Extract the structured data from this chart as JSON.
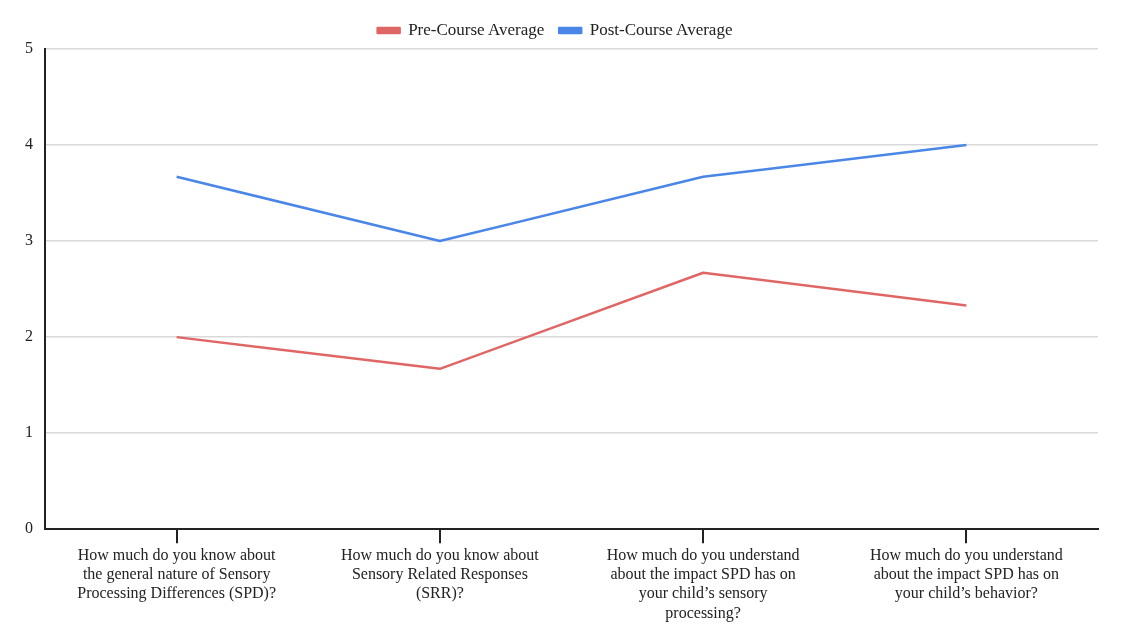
{
  "chart_data": {
    "type": "line",
    "categories": [
      "How much do you know about the general nature of Sensory Processing Differences (SPD)?",
      "How much do you know about Sensory Related Responses (SRR)?",
      "How much do you understand about the impact SPD has on your child’s sensory processing?",
      "How much do you understand about the impact SPD has on your child’s behavior?"
    ],
    "series": [
      {
        "name": "Pre-Course Average",
        "color": "#e06666",
        "values": [
          2,
          1.67,
          2.67,
          2.33
        ]
      },
      {
        "name": "Post-Course Average",
        "color": "#4a86e8",
        "values": [
          3.67,
          3,
          3.67,
          4
        ]
      }
    ],
    "ylim": [
      0,
      5
    ],
    "yticks": [
      0,
      1,
      2,
      3,
      4,
      5
    ],
    "grid": "y",
    "legend": "top",
    "marker": "none",
    "line_style": "solid"
  }
}
